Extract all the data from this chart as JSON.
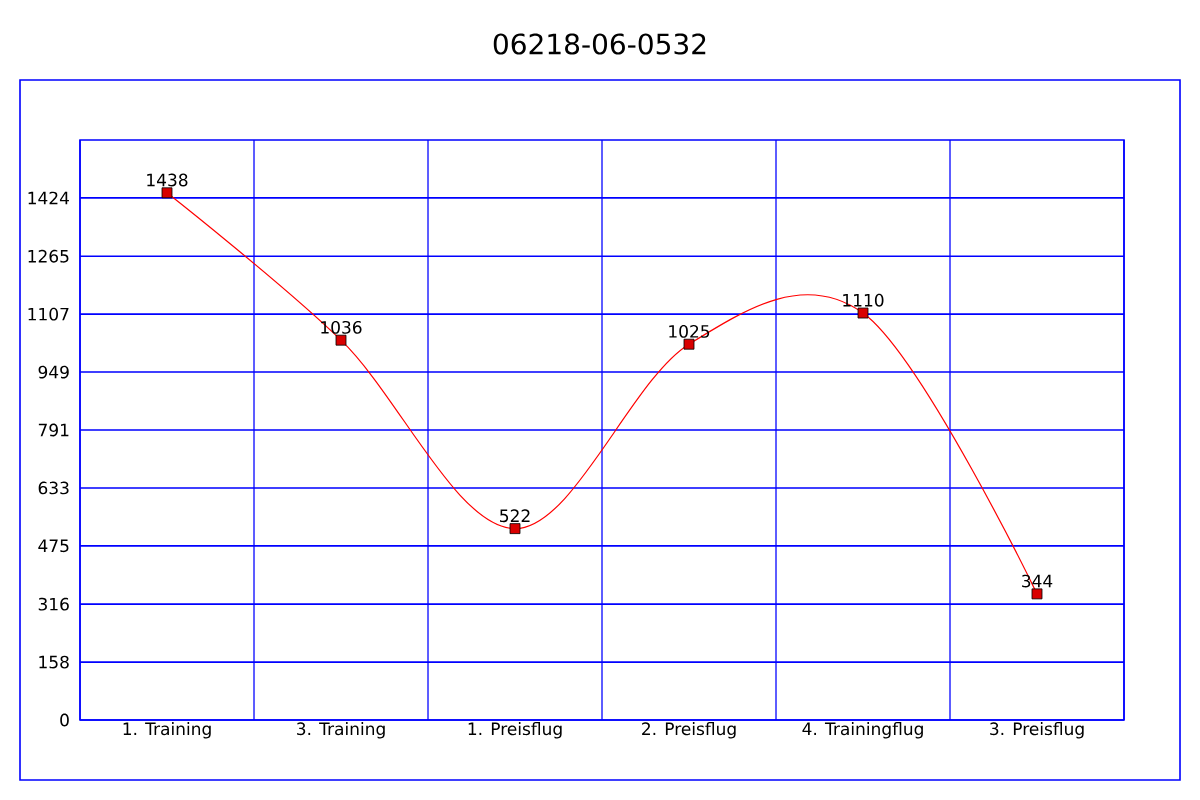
{
  "chart_data": {
    "type": "line",
    "title": "06218-06-0532",
    "categories": [
      "1. Training",
      "3. Training",
      "1. Preisflug",
      "2. Preisflug",
      "4. Trainingflug",
      "3. Preisflug"
    ],
    "values": [
      1438,
      1036,
      522,
      1025,
      1110,
      344
    ],
    "color": "#ff0000",
    "marker": "square",
    "data_labels": true,
    "grid": true,
    "ylim": [
      0,
      1582
    ],
    "yticks": [
      0,
      158,
      316,
      475,
      633,
      791,
      949,
      1107,
      1265,
      1424
    ]
  }
}
